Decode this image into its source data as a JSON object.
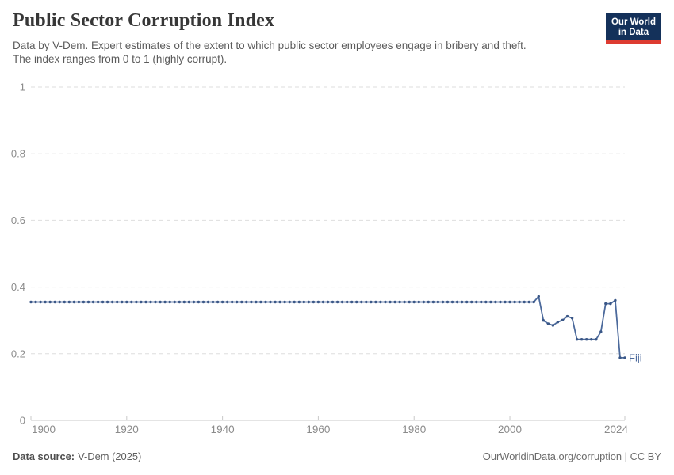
{
  "header": {
    "title": "Public Sector Corruption Index",
    "subtitle_line1": "Data by V-Dem. Expert estimates of the extent to which public sector employees engage in bribery and theft.",
    "subtitle_line2": "The index ranges from 0 to 1 (highly corrupt)."
  },
  "logo": {
    "line1": "Our World",
    "line2": "in Data",
    "bg_color": "#14315a",
    "bar_color": "#dd3b31"
  },
  "chart_data": {
    "type": "line",
    "title": "Public Sector Corruption Index",
    "xlabel": "",
    "ylabel": "",
    "xlim": [
      1900,
      2024
    ],
    "ylim": [
      0,
      1
    ],
    "xticks": [
      1900,
      1920,
      1940,
      1960,
      1980,
      2000,
      2024
    ],
    "yticks": [
      0,
      0.2,
      0.4,
      0.6,
      0.8,
      1
    ],
    "grid": "horizontal-dashed",
    "legend_position": "end-of-line-label",
    "line_color": "#4c6a9c",
    "dot_color": "#3a5787",
    "axis_color": "#c9c9c9",
    "grid_color": "#dedede",
    "tick_label_color": "#8b8b8b",
    "series": [
      {
        "name": "Fiji",
        "x_start": 1900,
        "x_end": 2024,
        "values": [
          0.355,
          0.355,
          0.355,
          0.355,
          0.355,
          0.355,
          0.355,
          0.355,
          0.355,
          0.355,
          0.355,
          0.355,
          0.355,
          0.355,
          0.355,
          0.355,
          0.355,
          0.355,
          0.355,
          0.355,
          0.355,
          0.355,
          0.355,
          0.355,
          0.355,
          0.355,
          0.355,
          0.355,
          0.355,
          0.355,
          0.355,
          0.355,
          0.355,
          0.355,
          0.355,
          0.355,
          0.355,
          0.355,
          0.355,
          0.355,
          0.355,
          0.355,
          0.355,
          0.355,
          0.355,
          0.355,
          0.355,
          0.355,
          0.355,
          0.355,
          0.355,
          0.355,
          0.355,
          0.355,
          0.355,
          0.355,
          0.355,
          0.355,
          0.355,
          0.355,
          0.355,
          0.355,
          0.355,
          0.355,
          0.355,
          0.355,
          0.355,
          0.355,
          0.355,
          0.355,
          0.355,
          0.355,
          0.355,
          0.355,
          0.355,
          0.355,
          0.355,
          0.355,
          0.355,
          0.355,
          0.355,
          0.355,
          0.355,
          0.355,
          0.355,
          0.355,
          0.355,
          0.355,
          0.355,
          0.355,
          0.355,
          0.355,
          0.355,
          0.355,
          0.355,
          0.355,
          0.355,
          0.355,
          0.355,
          0.355,
          0.355,
          0.355,
          0.355,
          0.355,
          0.355,
          0.355,
          0.372,
          0.3,
          0.29,
          0.285,
          0.295,
          0.301,
          0.312,
          0.307,
          0.243,
          0.243,
          0.243,
          0.243,
          0.243,
          0.266,
          0.35,
          0.35,
          0.36,
          0.188,
          0.188
        ]
      }
    ]
  },
  "footer": {
    "source_label": "Data source:",
    "source_value": "V-Dem (2025)",
    "right_text": "OurWorldinData.org/corruption | CC BY"
  }
}
